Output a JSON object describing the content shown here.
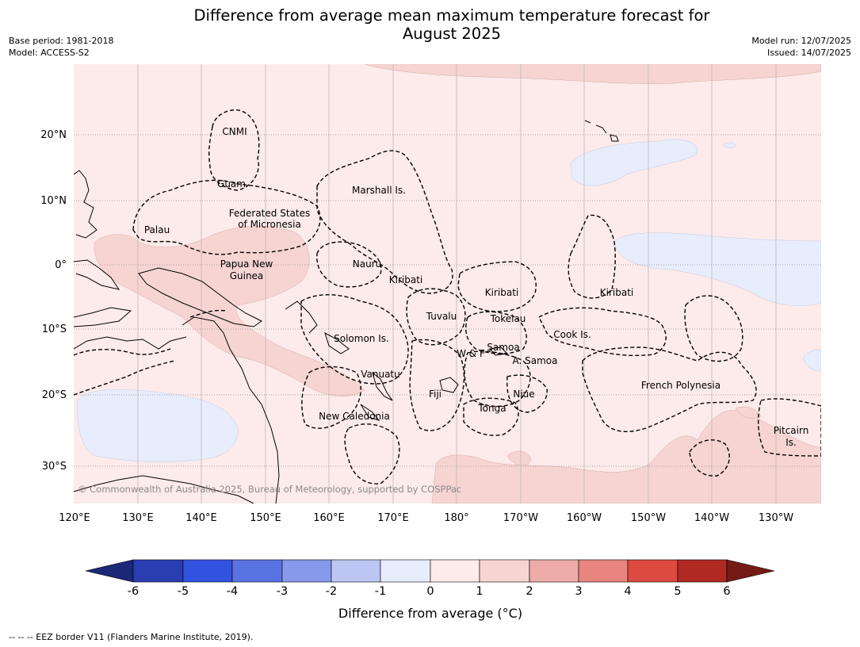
{
  "title_line1": "Difference from average mean maximum temperature forecast for",
  "title_line2": "August 2025",
  "meta_left": [
    "Base period: 1981-2018",
    "Model: ACCESS-S2"
  ],
  "meta_right": [
    "Model run: 12/07/2025",
    "Issued: 14/07/2025"
  ],
  "lon_labels": [
    "120°E",
    "130°E",
    "140°E",
    "150°E",
    "160°E",
    "170°E",
    "180°",
    "170°W",
    "160°W",
    "150°W",
    "140°W",
    "130°W"
  ],
  "lat_labels": [
    "20°N",
    "10°N",
    "0°",
    "10°S",
    "20°S",
    "30°S"
  ],
  "places": [
    {
      "text": "CNMI"
    },
    {
      "text": "Guam"
    },
    {
      "text": "Marshall Is."
    },
    {
      "text": "Federated States"
    },
    {
      "text": "of Micronesia"
    },
    {
      "text": "Palau"
    },
    {
      "text": "Papua New"
    },
    {
      "text": "Guinea"
    },
    {
      "text": "Nauru"
    },
    {
      "text": "Kiribati"
    },
    {
      "text": "Kiribati"
    },
    {
      "text": "Kiribati"
    },
    {
      "text": "Tuvalu"
    },
    {
      "text": "Tokelau"
    },
    {
      "text": "Cook Is."
    },
    {
      "text": "Solomon Is."
    },
    {
      "text": "Samoa"
    },
    {
      "text": "W & F"
    },
    {
      "text": "A. Samoa"
    },
    {
      "text": "Vanuatu"
    },
    {
      "text": "Fiji"
    },
    {
      "text": "Niue"
    },
    {
      "text": "Tonga"
    },
    {
      "text": "French Polynesia"
    },
    {
      "text": "New Caledonia"
    },
    {
      "text": "Pitcairn"
    },
    {
      "text": "Is."
    }
  ],
  "credit": "© Commonwealth of Australia 2025, Bureau of Meteorology, supported by COSPPac",
  "colorbar": {
    "title": "Difference from average (°C)",
    "ticks": [
      "-6",
      "-5",
      "-4",
      "-3",
      "-2",
      "-1",
      "0",
      "1",
      "2",
      "3",
      "4",
      "5",
      "6"
    ],
    "colors": [
      "#1a2878",
      "#2a3db2",
      "#3252e0",
      "#5a73e3",
      "#8699eb",
      "#bdc6f2",
      "#e8edfb",
      "#fcebea",
      "#f6d4d2",
      "#eeaca8",
      "#e8857f",
      "#dd4a40",
      "#b02a22",
      "#761a16"
    ]
  },
  "footer": "--  --  -- EEZ border V11 (Flanders Marine Institute, 2019)."
}
